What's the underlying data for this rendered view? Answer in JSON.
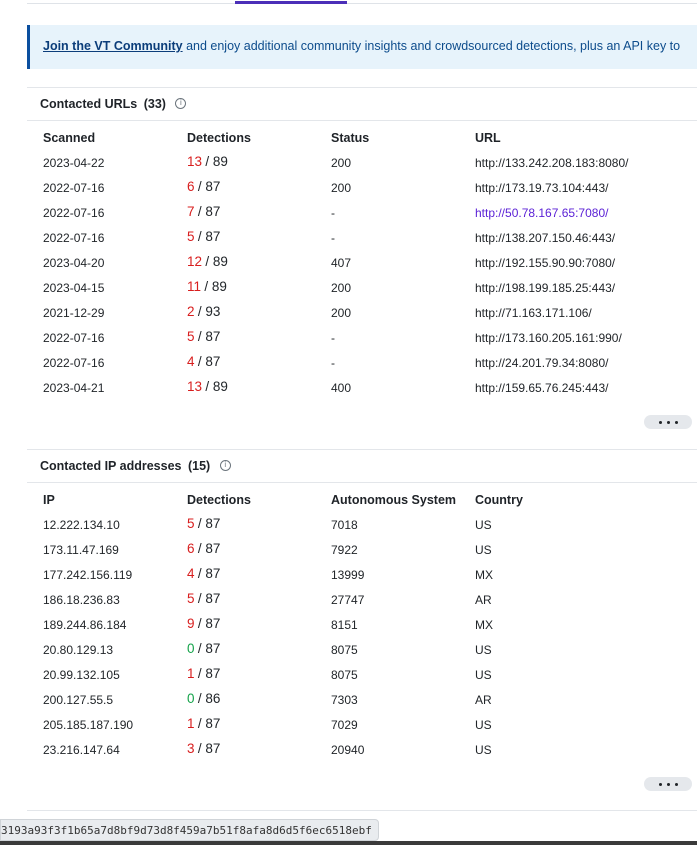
{
  "banner": {
    "link": "Join the VT Community",
    "text": " and enjoy additional community insights and crowdsourced detections, plus an API key to"
  },
  "urls": {
    "title": "Contacted URLs",
    "count": "(33)",
    "headers": [
      "Scanned",
      "Detections",
      "Status",
      "URL"
    ],
    "rows": [
      {
        "scanned": "2023-04-22",
        "pos": "13",
        "total": "/ 89",
        "status": "200",
        "url": "http://133.242.208.183:8080/"
      },
      {
        "scanned": "2022-07-16",
        "pos": "6",
        "total": "/ 87",
        "status": "200",
        "url": "http://173.19.73.104:443/"
      },
      {
        "scanned": "2022-07-16",
        "pos": "7",
        "total": "/ 87",
        "status": "-",
        "url": "http://50.78.167.65:7080/",
        "visited": true
      },
      {
        "scanned": "2022-07-16",
        "pos": "5",
        "total": "/ 87",
        "status": "-",
        "url": "http://138.207.150.46:443/"
      },
      {
        "scanned": "2023-04-20",
        "pos": "12",
        "total": "/ 89",
        "status": "407",
        "url": "http://192.155.90.90:7080/"
      },
      {
        "scanned": "2023-04-15",
        "pos": "11",
        "total": "/ 89",
        "status": "200",
        "url": "http://198.199.185.25:443/"
      },
      {
        "scanned": "2021-12-29",
        "pos": "2",
        "total": "/ 93",
        "status": "200",
        "url": "http://71.163.171.106/"
      },
      {
        "scanned": "2022-07-16",
        "pos": "5",
        "total": "/ 87",
        "status": "-",
        "url": "http://173.160.205.161:990/"
      },
      {
        "scanned": "2022-07-16",
        "pos": "4",
        "total": "/ 87",
        "status": "-",
        "url": "http://24.201.79.34:8080/"
      },
      {
        "scanned": "2023-04-21",
        "pos": "13",
        "total": "/ 89",
        "status": "400",
        "url": "http://159.65.76.245:443/"
      }
    ]
  },
  "ips": {
    "title": "Contacted IP addresses",
    "count": "(15)",
    "headers": [
      "IP",
      "Detections",
      "Autonomous System",
      "Country"
    ],
    "rows": [
      {
        "ip": "12.222.134.10",
        "pos": "5",
        "total": "/ 87",
        "as": "7018",
        "country": "US"
      },
      {
        "ip": "173.11.47.169",
        "pos": "6",
        "total": "/ 87",
        "as": "7922",
        "country": "US"
      },
      {
        "ip": "177.242.156.119",
        "pos": "4",
        "total": "/ 87",
        "as": "13999",
        "country": "MX"
      },
      {
        "ip": "186.18.236.83",
        "pos": "5",
        "total": "/ 87",
        "as": "27747",
        "country": "AR"
      },
      {
        "ip": "189.244.86.184",
        "pos": "9",
        "total": "/ 87",
        "as": "8151",
        "country": "MX"
      },
      {
        "ip": "20.80.129.13",
        "pos": "0",
        "total": "/ 87",
        "as": "8075",
        "country": "US"
      },
      {
        "ip": "20.99.132.105",
        "pos": "1",
        "total": "/ 87",
        "as": "8075",
        "country": "US"
      },
      {
        "ip": "200.127.55.5",
        "pos": "0",
        "total": "/ 86",
        "as": "7303",
        "country": "AR"
      },
      {
        "ip": "205.185.187.190",
        "pos": "1",
        "total": "/ 87",
        "as": "7029",
        "country": "US"
      },
      {
        "ip": "23.216.147.64",
        "pos": "3",
        "total": "/ 87",
        "as": "20940",
        "country": "US"
      }
    ]
  },
  "status_bar": {
    "hash": "3193a93f3f1b65a7d8bf9d73d8f459a7b51f8afa8d6d5f6ec6518ebf"
  }
}
